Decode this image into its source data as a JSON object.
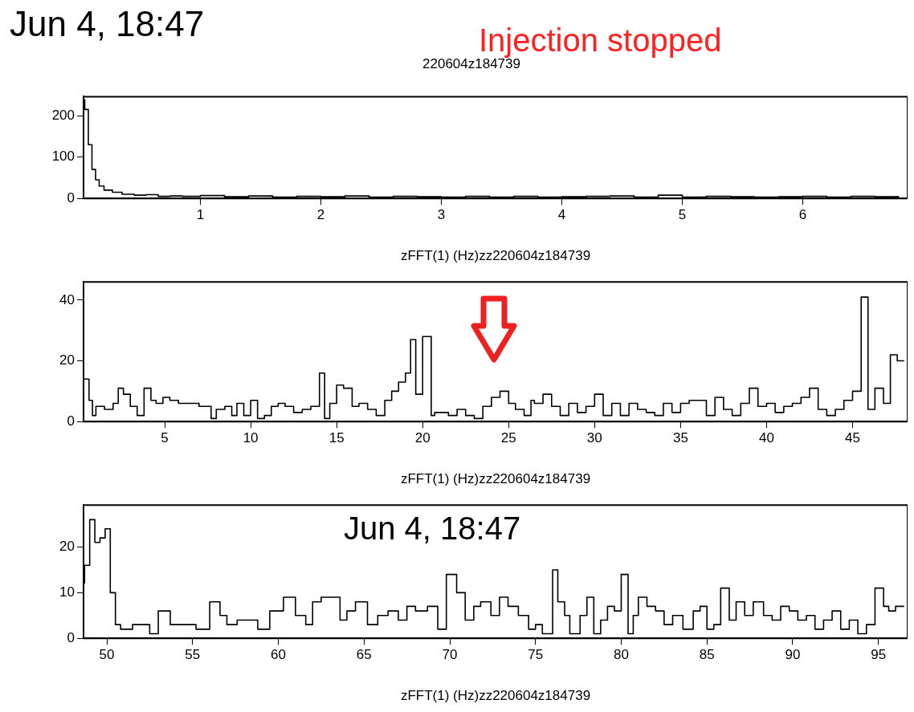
{
  "chart_data": [
    {
      "type": "step",
      "title": "220604z184739",
      "xlabel": "zFFT(1) (Hz)zz220604z184739",
      "annotations": [
        "Jun 4, 18:47",
        "Injection stopped"
      ],
      "xlim": [
        0.03,
        6.87
      ],
      "xticks": [
        1,
        2,
        3,
        4,
        5,
        6
      ],
      "ylim": [
        0,
        246
      ],
      "yticks": [
        0,
        100,
        200
      ],
      "grid": false,
      "legend": false,
      "marker": "none",
      "series": [
        {
          "color": "#000000",
          "x": [
            0.04,
            0.07,
            0.1,
            0.13,
            0.16,
            0.2,
            0.27,
            0.35,
            0.45,
            0.55,
            0.65,
            0.75,
            0.85,
            1.0,
            1.2,
            1.4,
            1.6,
            1.8,
            2.0,
            2.2,
            2.4,
            2.6,
            2.8,
            3.0,
            3.2,
            3.4,
            3.6,
            3.8,
            4.0,
            4.2,
            4.4,
            4.6,
            4.8,
            5.0,
            5.2,
            5.4,
            5.6,
            5.8,
            6.0,
            6.2,
            6.4,
            6.6,
            6.8
          ],
          "values": [
            240,
            215,
            130,
            70,
            45,
            30,
            20,
            15,
            10,
            8,
            9,
            5,
            6,
            5,
            7,
            4,
            6,
            3,
            5,
            4,
            6,
            3,
            5,
            4,
            3,
            5,
            3,
            5,
            3,
            4,
            5,
            6,
            3,
            8,
            3,
            5,
            4,
            3,
            4,
            5,
            3,
            5,
            4
          ]
        }
      ]
    },
    {
      "type": "step",
      "xlabel": "zFFT(1) (Hz)zz220604z184739",
      "xlim": [
        0.28,
        48.2
      ],
      "xticks": [
        5,
        10,
        15,
        20,
        25,
        30,
        35,
        40,
        45
      ],
      "ylim": [
        0,
        46
      ],
      "yticks": [
        0,
        20,
        40
      ],
      "grid": false,
      "legend": false,
      "marker": "none",
      "series": [
        {
          "color": "#000000",
          "x": [
            0.3,
            0.6,
            0.8,
            1.0,
            1.5,
            2.0,
            2.3,
            2.6,
            3.0,
            3.4,
            3.8,
            4.2,
            4.5,
            4.9,
            5.3,
            5.8,
            6.3,
            7.0,
            7.7,
            8.0,
            8.5,
            8.9,
            9.2,
            9.6,
            10.0,
            10.4,
            10.8,
            11.2,
            11.6,
            12.0,
            12.5,
            13.0,
            13.5,
            14.0,
            14.3,
            14.6,
            15.0,
            15.4,
            15.9,
            16.3,
            16.8,
            17.3,
            17.8,
            18.2,
            18.6,
            19.0,
            19.3,
            19.6,
            20.0,
            20.5,
            20.7,
            21.5,
            22.0,
            22.5,
            23.0,
            23.5,
            24.0,
            24.5,
            25.0,
            25.4,
            25.9,
            26.3,
            26.5,
            27.0,
            27.5,
            28.0,
            28.5,
            29.0,
            29.5,
            30.0,
            30.5,
            31.0,
            31.5,
            32.0,
            32.5,
            33.0,
            33.5,
            34.0,
            34.5,
            35.0,
            35.5,
            36.0,
            36.5,
            37.0,
            37.5,
            38.0,
            38.5,
            39.0,
            39.5,
            40.0,
            40.5,
            41.0,
            41.5,
            42.0,
            42.5,
            43.0,
            43.5,
            44.0,
            44.5,
            45.0,
            45.5,
            45.9,
            46.3,
            46.8,
            47.2,
            47.6,
            48.0
          ],
          "values": [
            14,
            14,
            7,
            2,
            5,
            4,
            6,
            11,
            9,
            5,
            2,
            11,
            7,
            6,
            8,
            7,
            6,
            6,
            5,
            1,
            4,
            5,
            2,
            6,
            2,
            7,
            1,
            2,
            5,
            6,
            5,
            3,
            4,
            5,
            16,
            1,
            6,
            12,
            11,
            5,
            6,
            4,
            2,
            7,
            10,
            13,
            16,
            27,
            9,
            28,
            2,
            3,
            2,
            4,
            2,
            1,
            5,
            8,
            10,
            6,
            4,
            2,
            7,
            6,
            9,
            5,
            2,
            6,
            3,
            5,
            9,
            2,
            6,
            2,
            6,
            4,
            3,
            2,
            6,
            3,
            6,
            7,
            7,
            2,
            8,
            4,
            2,
            6,
            11,
            5,
            6,
            3,
            5,
            6,
            8,
            11,
            4,
            2,
            4,
            7,
            10,
            41,
            4,
            11,
            6,
            22,
            20
          ]
        }
      ]
    },
    {
      "type": "step",
      "xlabel": "zFFT(1) (Hz)zz220604z184739",
      "annotations": [
        "Jun 4, 18:47"
      ],
      "xlim": [
        48.64,
        96.7
      ],
      "xticks": [
        50,
        55,
        60,
        65,
        70,
        75,
        80,
        85,
        90,
        95
      ],
      "ylim": [
        0,
        29.2
      ],
      "yticks": [
        0,
        10,
        20
      ],
      "grid": false,
      "legend": false,
      "marker": "none",
      "series": [
        {
          "color": "#000000",
          "x": [
            48.7,
            49.0,
            49.3,
            49.6,
            49.9,
            50.2,
            50.5,
            50.8,
            51.5,
            52.5,
            53,
            53.7,
            54.2,
            55.2,
            56,
            56.6,
            57,
            57.6,
            58.2,
            58.8,
            59.5,
            60.3,
            61,
            61.6,
            62,
            62.5,
            63,
            63.6,
            64,
            64.5,
            65.2,
            65.8,
            66.4,
            67,
            67.5,
            68,
            68.7,
            69.3,
            69.8,
            70.4,
            70.9,
            71.4,
            71.8,
            72.4,
            72.9,
            73.4,
            74,
            74.6,
            75,
            75.4,
            76,
            76.3,
            76.7,
            77,
            77.6,
            78,
            78.4,
            78.8,
            79.2,
            79.6,
            80,
            80.4,
            80.7,
            81,
            81.5,
            82,
            82.5,
            83,
            83.6,
            84.2,
            84.6,
            85,
            85.4,
            85.8,
            86.3,
            86.7,
            87.2,
            87.7,
            88.3,
            88.8,
            89.3,
            89.8,
            90.3,
            90.8,
            91.3,
            91.8,
            92.3,
            92.8,
            93.3,
            93.8,
            94.3,
            94.8,
            95.3,
            95.6,
            96,
            96.5
          ],
          "values": [
            12,
            16,
            26,
            21,
            22,
            24,
            10,
            3,
            2,
            3,
            1,
            6,
            3,
            3,
            2,
            8,
            5,
            3,
            4,
            4,
            2,
            6,
            9,
            5,
            3,
            8,
            9,
            9,
            4,
            6,
            8,
            3,
            5,
            6,
            4,
            7,
            6,
            7,
            2,
            14,
            10,
            4,
            7,
            8,
            5,
            9,
            7,
            5,
            2,
            3,
            1,
            15,
            8,
            5,
            1,
            5,
            9,
            1,
            4,
            7,
            6,
            14,
            1,
            5,
            9,
            7,
            6,
            3,
            5,
            2,
            6,
            7,
            2,
            3,
            11,
            4,
            8,
            5,
            8,
            5,
            4,
            7,
            6,
            4,
            5,
            2,
            4,
            6,
            2,
            4,
            1,
            3,
            11,
            7,
            6,
            7
          ]
        }
      ]
    }
  ]
}
